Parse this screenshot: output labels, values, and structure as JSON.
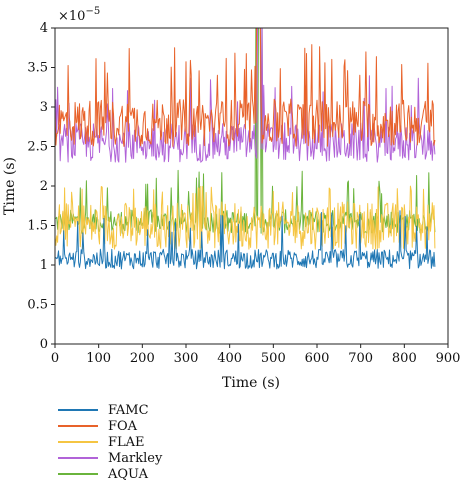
{
  "chart_data": {
    "type": "line",
    "title": "",
    "xlabel": "Time (s)",
    "ylabel": "Time (s)",
    "y_multiplier": "×10",
    "y_multiplier_exp": "−5",
    "xlim": [
      0,
      900
    ],
    "ylim": [
      0,
      4
    ],
    "x_ticks": [
      0,
      100,
      200,
      300,
      400,
      500,
      600,
      700,
      800,
      900
    ],
    "y_ticks": [
      0,
      0.5,
      1,
      1.5,
      2,
      2.5,
      3,
      3.5,
      4
    ],
    "y_tick_labels": [
      "0",
      "0.5",
      "1",
      "1.5",
      "2",
      "2.5",
      "3",
      "3.5",
      "4"
    ],
    "grid": false,
    "legend_position": "below-left",
    "x_range": [
      0,
      870
    ],
    "x_step": 2,
    "series": [
      {
        "name": "FAMC",
        "color": "#1f77b4",
        "typical": [
          0.95,
          1.2
        ],
        "spikes": [
          1.4,
          1.7
        ]
      },
      {
        "name": "FOA",
        "color": "#e8622a",
        "typical": [
          2.5,
          3.1
        ],
        "spikes": [
          3.4,
          3.8
        ]
      },
      {
        "name": "FLAE",
        "color": "#f5c542",
        "typical": [
          1.2,
          1.8
        ],
        "spikes": [
          1.9,
          2.0
        ]
      },
      {
        "name": "Markley",
        "color": "#b163d8",
        "typical": [
          2.3,
          2.8
        ],
        "spikes": [
          3.0,
          3.4
        ]
      },
      {
        "name": "AQUA",
        "color": "#6ab43c",
        "typical": [
          1.4,
          1.7
        ],
        "spikes": [
          1.9,
          2.2
        ]
      }
    ]
  }
}
